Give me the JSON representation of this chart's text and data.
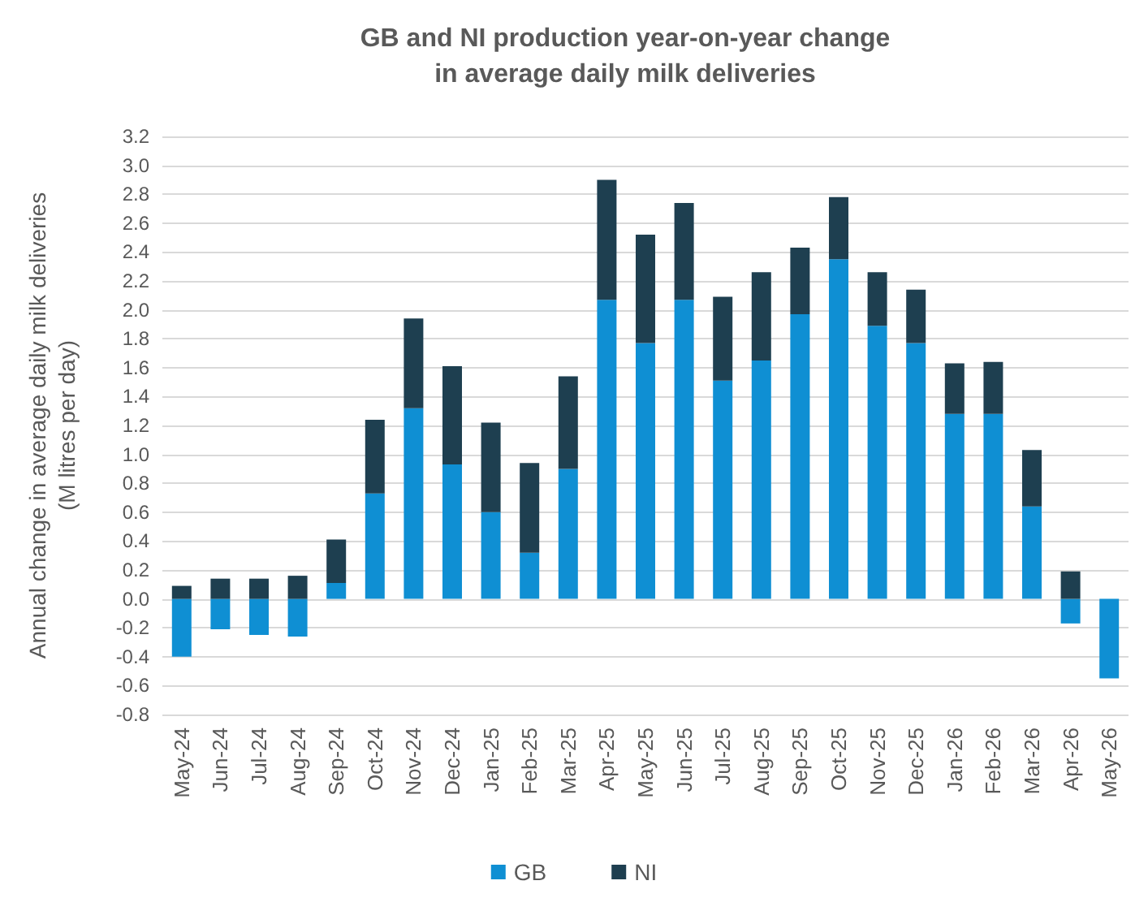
{
  "chart_data": {
    "type": "bar",
    "stacked": true,
    "title": "GB and NI production year-on-year change\nin average daily milk deliveries",
    "ylabel": "Annual change in average daily milk deliveries\n(M litres per day)",
    "categories": [
      "May-24",
      "Jun-24",
      "Jul-24",
      "Aug-24",
      "Sep-24",
      "Oct-24",
      "Nov-24",
      "Dec-24",
      "Jan-25",
      "Feb-25",
      "Mar-25",
      "Apr-25",
      "May-25",
      "Jun-25",
      "Jul-25",
      "Aug-25",
      "Sep-25",
      "Oct-25",
      "Nov-25",
      "Dec-25",
      "Jan-26",
      "Feb-26",
      "Mar-26",
      "Apr-26",
      "May-26"
    ],
    "series": [
      {
        "name": "GB",
        "color": "#0f8fd3",
        "values": [
          -0.4,
          -0.21,
          -0.25,
          -0.26,
          0.11,
          0.73,
          1.32,
          0.93,
          0.6,
          0.32,
          0.9,
          2.07,
          1.77,
          2.07,
          1.51,
          1.65,
          1.97,
          2.35,
          1.89,
          1.77,
          1.28,
          1.28,
          0.64,
          -0.17,
          -0.55
        ]
      },
      {
        "name": "NI",
        "color": "#1e3f50",
        "values": [
          0.09,
          0.14,
          0.14,
          0.16,
          0.3,
          0.51,
          0.62,
          0.68,
          0.62,
          0.62,
          0.64,
          0.83,
          0.75,
          0.67,
          0.58,
          0.61,
          0.46,
          0.43,
          0.37,
          0.37,
          0.35,
          0.36,
          0.39,
          0.19,
          null
        ]
      }
    ],
    "ylim": [
      -0.8,
      3.2
    ],
    "yticks": [
      -0.8,
      -0.6,
      -0.4,
      -0.2,
      {
        "value": 0,
        "label": "0.0"
      },
      0.2,
      0.4,
      0.6,
      0.8,
      {
        "value": 1,
        "label": "1.0"
      },
      1.2,
      1.4,
      1.6,
      1.8,
      {
        "value": 2,
        "label": "2.0"
      },
      2.2,
      2.4,
      2.6,
      2.8,
      {
        "value": 3,
        "label": "3.0"
      },
      3.2
    ],
    "grid": "y",
    "legend": "bottom"
  }
}
